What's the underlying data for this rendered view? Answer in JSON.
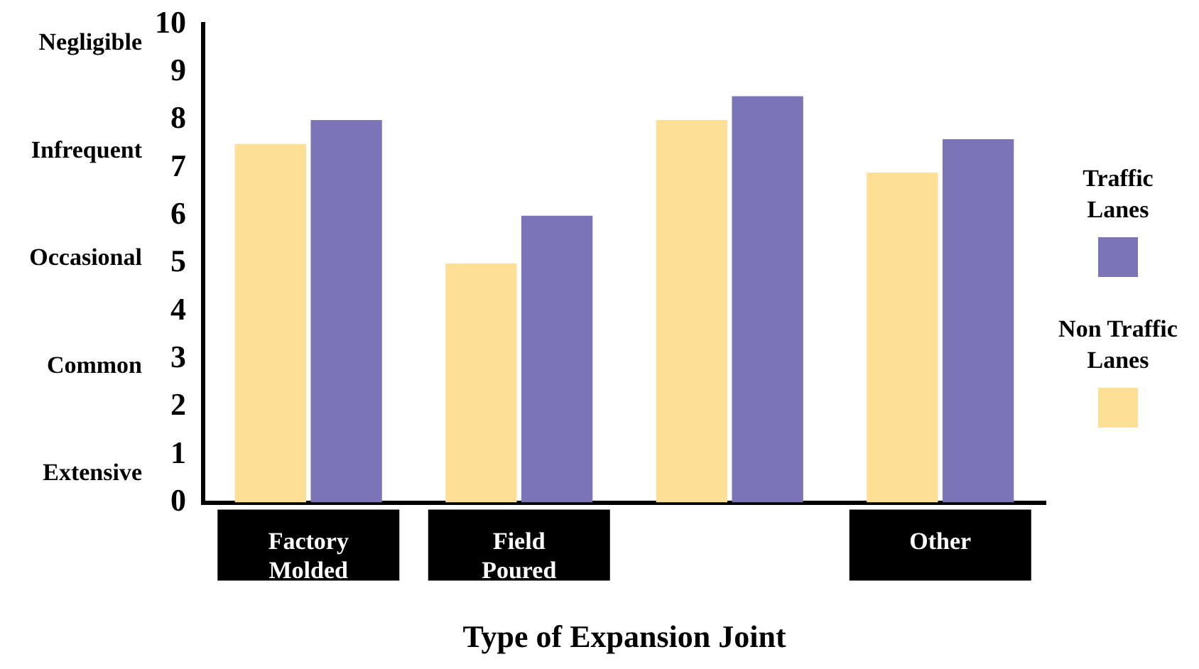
{
  "chart_data": {
    "type": "bar",
    "xlabel": "Type of Expansion Joint",
    "categories": [
      "Factory Molded",
      "Field Poured",
      null,
      "Other"
    ],
    "series": [
      {
        "name": "Non Traffic Lanes",
        "color": "#fddf95",
        "values": [
          7.5,
          5,
          8,
          6.9
        ]
      },
      {
        "name": "Traffic Lanes",
        "color": "#7b75b7",
        "values": [
          8,
          6,
          8.5,
          7.6
        ]
      }
    ],
    "ylim": [
      0,
      10
    ],
    "yticks": [
      0,
      1,
      2,
      3,
      4,
      5,
      6,
      7,
      8,
      9,
      10
    ],
    "legend": "right",
    "annotations": [
      "Negligible",
      "Infrequent",
      "Occasional",
      "Common",
      "Extensive"
    ]
  }
}
